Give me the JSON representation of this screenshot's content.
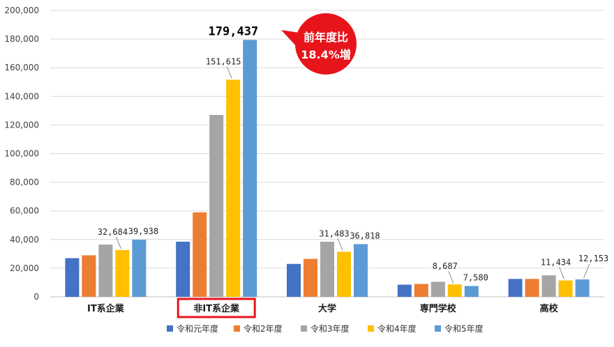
{
  "chart_data": {
    "type": "bar",
    "categories": [
      "IT系企業",
      "非IT系企業",
      "大学",
      "専門学校",
      "高校"
    ],
    "highlighted_category": "非IT系企業",
    "series": [
      {
        "name": "令和元年度",
        "color": "#4472C4",
        "values": [
          27000,
          38500,
          23000,
          8500,
          12500
        ]
      },
      {
        "name": "令和2年度",
        "color": "#ED7D31",
        "values": [
          29000,
          59000,
          26500,
          9000,
          12500
        ]
      },
      {
        "name": "令和3年度",
        "color": "#A5A5A5",
        "values": [
          36500,
          127000,
          38500,
          10500,
          15000
        ]
      },
      {
        "name": "令和4年度",
        "color": "#FFC000",
        "values": [
          32684,
          151615,
          31483,
          8687,
          11434
        ]
      },
      {
        "name": "令和5年度",
        "color": "#5B9BD5",
        "values": [
          39938,
          179437,
          36818,
          7580,
          12153
        ]
      }
    ],
    "data_labels": [
      {
        "series": 3,
        "category": 0,
        "text": "32,684"
      },
      {
        "series": 4,
        "category": 0,
        "text": "39,938"
      },
      {
        "series": 3,
        "category": 1,
        "text": "151,615"
      },
      {
        "series": 4,
        "category": 1,
        "text": "179,437",
        "emphasis": true
      },
      {
        "series": 3,
        "category": 2,
        "text": "31,483"
      },
      {
        "series": 4,
        "category": 2,
        "text": "36,818"
      },
      {
        "series": 3,
        "category": 3,
        "text": "8,687"
      },
      {
        "series": 4,
        "category": 3,
        "text": "7,580"
      },
      {
        "series": 3,
        "category": 4,
        "text": "11,434"
      },
      {
        "series": 4,
        "category": 4,
        "text": "12,153"
      }
    ],
    "yticks": [
      "0",
      "20,000",
      "40,000",
      "60,000",
      "80,000",
      "100,000",
      "120,000",
      "140,000",
      "160,000",
      "180,000",
      "200,000"
    ],
    "ylim": [
      0,
      200000
    ],
    "grid": true,
    "legend_position": "bottom",
    "callout": {
      "line1": "前年度比",
      "line2": "18.4%増",
      "color": "#E8141B"
    },
    "highlight_color": "#E8141B"
  }
}
